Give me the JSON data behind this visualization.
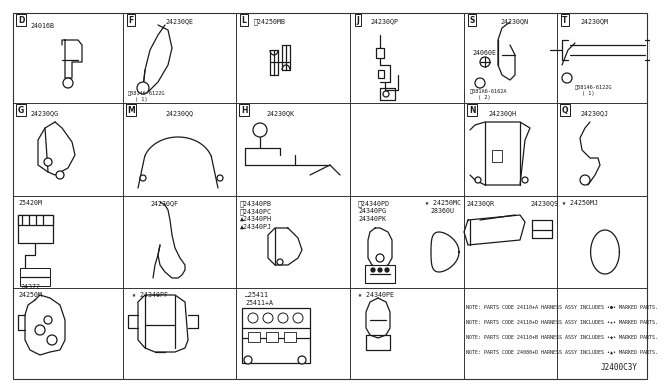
{
  "bg": "#f5f5f0",
  "fg": "#1a1a1a",
  "lc": "#333333",
  "dpi": 100,
  "fw": 6.4,
  "fh": 3.72,
  "diagram_code": "J2400C3Y",
  "notes": [
    "NOTE: PARTS CODE 24110+A HARNESS ASSY INCLUDES •●• MARKED PARTS.",
    "NOTE: PARTS CODE 24110+D HARNESS ASSY INCLUDES •★• MARKED PARTS.",
    "NOTE: PARTS CODE 24110+B HARNESS ASSY INCLUDES •◆• MARKED PARTS.",
    "NOTE: PARTS CODE 24080+D HARNESS ASSY INCLUDES •▲• MARKED PARTS."
  ]
}
